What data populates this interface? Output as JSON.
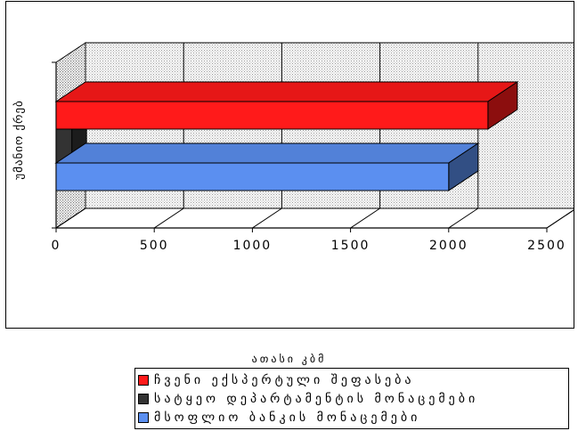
{
  "chart_data": {
    "type": "bar",
    "orientation": "horizontal",
    "style": "3d-stacked-clustered",
    "ylabel": "უმანიო ქრებ",
    "unit_label": "ათასი კბმ",
    "xlim": [
      0,
      2500
    ],
    "xticks": [
      0,
      500,
      1000,
      1500,
      2000,
      2500
    ],
    "grid": true,
    "legend_position": "bottom",
    "series": [
      {
        "name": "ჩვენი ექსპერტული შეფასება",
        "value": 2200,
        "color": "#ff1a1a"
      },
      {
        "name": "სატყეო დეპარტამენტის მონაცემები",
        "value": 80,
        "color": "#333333"
      },
      {
        "name": "მსოფლიო ბანკის მონაცემები",
        "value": 2000,
        "color": "#5b8ff0"
      }
    ]
  }
}
